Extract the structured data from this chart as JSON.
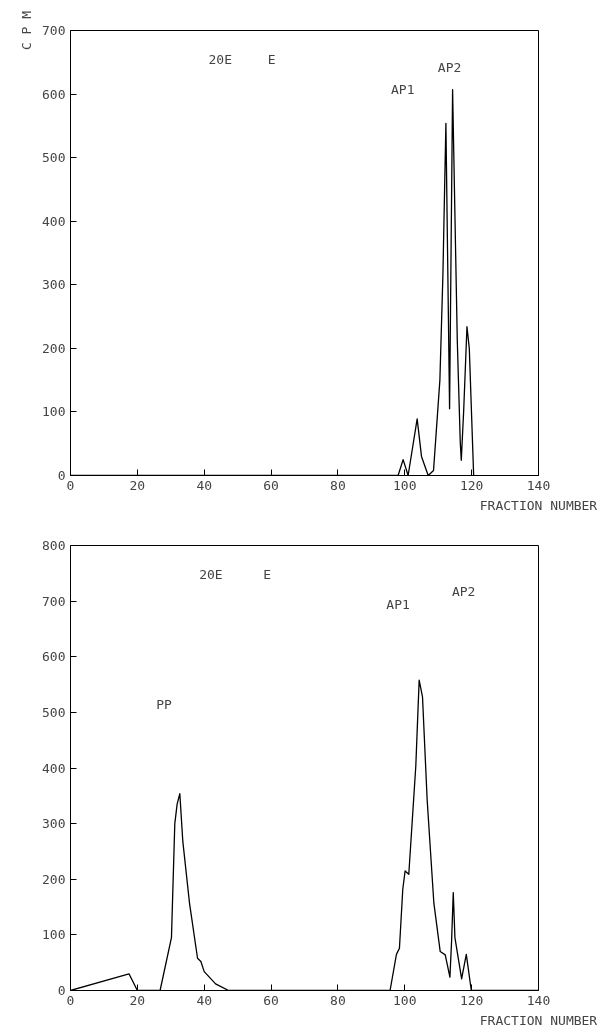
{
  "chart_data": [
    {
      "type": "line",
      "ylabel": "C P M",
      "xlabel": "FRACTION NUMBER",
      "xlim": [
        0,
        140
      ],
      "ylim": [
        0,
        700
      ],
      "xticks": [
        0,
        20,
        40,
        60,
        80,
        100,
        120,
        140
      ],
      "yticks": [
        0,
        100,
        200,
        300,
        400,
        500,
        600,
        700
      ],
      "grid": false,
      "marker": "none",
      "line_style": "solid",
      "series": [
        {
          "color": "#000000",
          "x": [
            0,
            98,
            99.5,
            101,
            103.7,
            105,
            107,
            108.6,
            110.5,
            111.4,
            112.3,
            113.4,
            114.3,
            115.7,
            116.6,
            116.9,
            117.6,
            118.6,
            119.3,
            120.6
          ],
          "values": [
            0,
            0,
            25,
            0,
            89,
            30,
            0,
            8,
            150,
            315,
            554,
            105,
            607,
            213,
            52,
            24,
            100,
            234,
            200,
            0
          ]
        }
      ],
      "annotations": [
        "20E",
        "E",
        "AP1",
        "AP2"
      ]
    },
    {
      "type": "line",
      "xlabel": "FRACTION NUMBER",
      "xlim": [
        0,
        140
      ],
      "ylim": [
        0,
        800
      ],
      "xticks": [
        0,
        20,
        40,
        60,
        80,
        100,
        120,
        140
      ],
      "yticks": [
        0,
        100,
        200,
        300,
        400,
        500,
        600,
        700,
        800
      ],
      "grid": false,
      "marker": "none",
      "line_style": "solid",
      "series": [
        {
          "color": "#000000",
          "x": [
            0,
            17.5,
            20,
            26.8,
            30.2,
            31.2,
            31.9,
            32.7,
            33.6,
            35.6,
            38,
            39,
            40,
            43.4,
            47.3,
            95.6,
            97.5,
            98.4,
            99.4,
            100.1,
            101.2,
            103.3,
            104.3,
            105.3,
            106.7,
            108.7,
            110.6,
            112.1,
            113.5,
            114,
            114.5,
            115,
            117,
            118.4,
            119.9,
            140
          ],
          "values": [
            0,
            30,
            0,
            0,
            95,
            300,
            335,
            354,
            268,
            157,
            58,
            52,
            34,
            12,
            0,
            0,
            65,
            76,
            182,
            215,
            209,
            404,
            558,
            528,
            342,
            157,
            70,
            64,
            24,
            89,
            176,
            95,
            21,
            65,
            0,
            0
          ]
        }
      ],
      "annotations": [
        "20E",
        "E",
        "PP",
        "AP1",
        "AP2"
      ]
    }
  ]
}
